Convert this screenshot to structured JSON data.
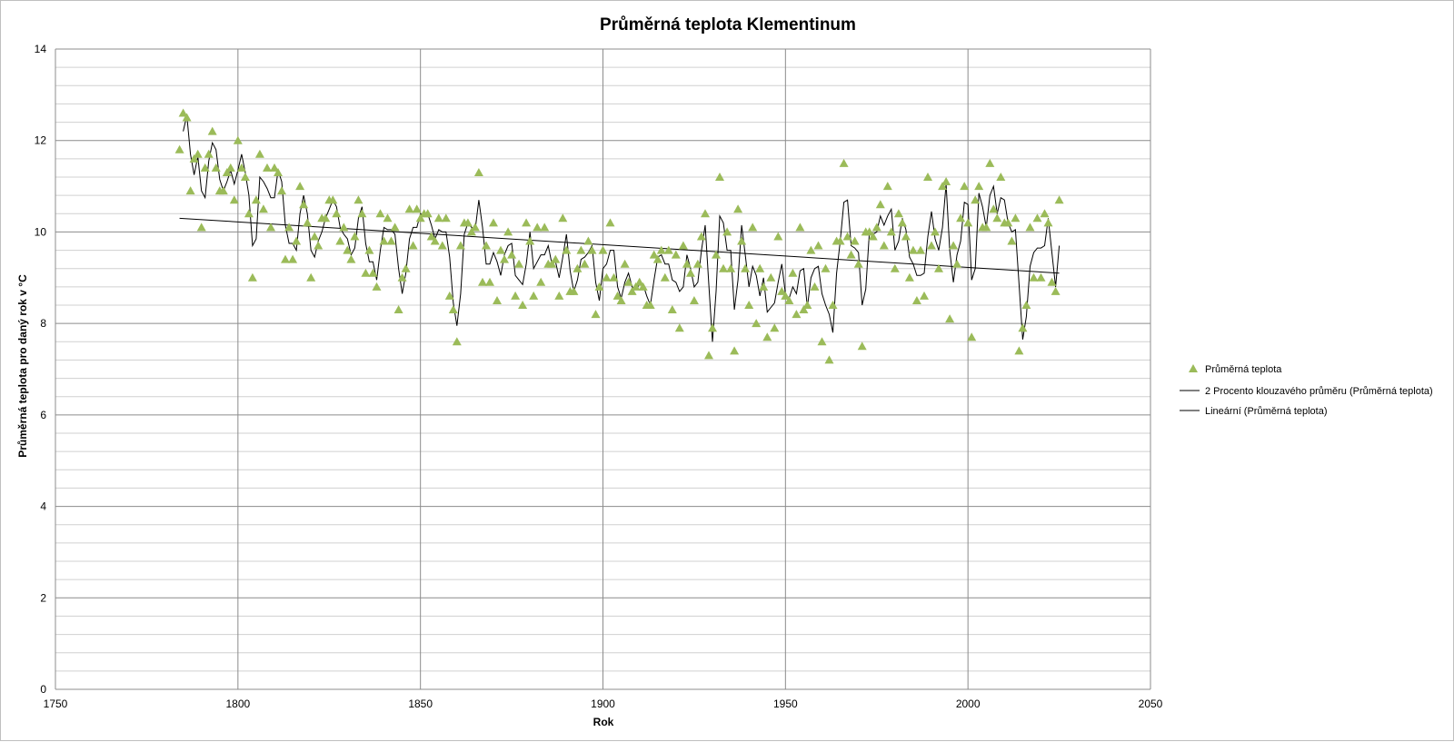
{
  "chart_data": {
    "type": "scatter",
    "title": "Průměrná teplota Klementinum",
    "xlabel": "Rok",
    "ylabel": "Průměrná teplota pro daný rok v °C",
    "xlim": [
      1750,
      2050
    ],
    "ylim": [
      0,
      14
    ],
    "x_ticks": [
      1750,
      1800,
      1850,
      1900,
      1950,
      2000,
      2050
    ],
    "y_ticks": [
      0,
      2,
      4,
      6,
      8,
      10,
      12,
      14
    ],
    "grid": "major vertical and horizontal, minor horizontal",
    "legend_position": "right",
    "colors": {
      "marker": "#9bbb59",
      "line": "#000000",
      "grid_major": "#8c8c8c",
      "grid_minor": "#d0d0d0"
    },
    "series": [
      {
        "name": "Průměrná teplota",
        "kind": "scatter",
        "marker": "triangle"
      },
      {
        "name": "2 Procento klouzavého průměru (Průměrná teplota)",
        "kind": "moving-average",
        "period": 2
      },
      {
        "name": "Lineární (Průměrná teplota)",
        "kind": "linear-trend"
      }
    ],
    "x": [
      1784,
      1785,
      1786,
      1787,
      1788,
      1789,
      1790,
      1791,
      1792,
      1793,
      1794,
      1795,
      1796,
      1797,
      1798,
      1799,
      1800,
      1801,
      1802,
      1803,
      1804,
      1805,
      1806,
      1807,
      1808,
      1809,
      1810,
      1811,
      1812,
      1813,
      1814,
      1815,
      1816,
      1817,
      1818,
      1819,
      1820,
      1821,
      1822,
      1823,
      1824,
      1825,
      1826,
      1827,
      1828,
      1829,
      1830,
      1831,
      1832,
      1833,
      1834,
      1835,
      1836,
      1837,
      1838,
      1839,
      1840,
      1841,
      1842,
      1843,
      1844,
      1845,
      1846,
      1847,
      1848,
      1849,
      1850,
      1851,
      1852,
      1853,
      1854,
      1855,
      1856,
      1857,
      1858,
      1859,
      1860,
      1861,
      1862,
      1863,
      1864,
      1865,
      1866,
      1867,
      1868,
      1869,
      1870,
      1871,
      1872,
      1873,
      1874,
      1875,
      1876,
      1877,
      1878,
      1879,
      1880,
      1881,
      1882,
      1883,
      1884,
      1885,
      1886,
      1887,
      1888,
      1889,
      1890,
      1891,
      1892,
      1893,
      1894,
      1895,
      1896,
      1897,
      1898,
      1899,
      1900,
      1901,
      1902,
      1903,
      1904,
      1905,
      1906,
      1907,
      1908,
      1909,
      1910,
      1911,
      1912,
      1913,
      1914,
      1915,
      1916,
      1917,
      1918,
      1919,
      1920,
      1921,
      1922,
      1923,
      1924,
      1925,
      1926,
      1927,
      1928,
      1929,
      1930,
      1931,
      1932,
      1933,
      1934,
      1935,
      1936,
      1937,
      1938,
      1939,
      1940,
      1941,
      1942,
      1943,
      1944,
      1945,
      1946,
      1947,
      1948,
      1949,
      1950,
      1951,
      1952,
      1953,
      1954,
      1955,
      1956,
      1957,
      1958,
      1959,
      1960,
      1961,
      1962,
      1963,
      1964,
      1965,
      1966,
      1967,
      1968,
      1969,
      1970,
      1971,
      1972,
      1973,
      1974,
      1975,
      1976,
      1977,
      1978,
      1979,
      1980,
      1981,
      1982,
      1983,
      1984,
      1985,
      1986,
      1987,
      1988,
      1989,
      1990,
      1991,
      1992,
      1993,
      1994,
      1995,
      1996,
      1997,
      1998,
      1999,
      2000,
      2001,
      2002,
      2003,
      2004,
      2005,
      2006,
      2007,
      2008,
      2009,
      2010,
      2011,
      2012,
      2013,
      2014,
      2015,
      2016,
      2017,
      2018,
      2019,
      2020,
      2021,
      2022,
      2023,
      2024,
      2025
    ],
    "y": [
      11.8,
      12.6,
      12.5,
      10.9,
      11.6,
      11.7,
      10.1,
      11.4,
      11.7,
      12.2,
      11.4,
      10.9,
      10.9,
      11.3,
      11.4,
      10.7,
      12.0,
      11.4,
      11.2,
      10.4,
      9.0,
      10.7,
      11.7,
      10.5,
      11.4,
      10.1,
      11.4,
      11.3,
      10.9,
      9.4,
      10.1,
      9.4,
      9.8,
      11.0,
      10.6,
      10.2,
      9.0,
      9.9,
      9.7,
      10.3,
      10.3,
      10.7,
      10.7,
      10.4,
      9.8,
      10.1,
      9.6,
      9.4,
      9.9,
      10.7,
      10.4,
      9.1,
      9.6,
      9.1,
      8.8,
      10.4,
      9.8,
      10.3,
      9.8,
      10.1,
      8.3,
      9.0,
      9.2,
      10.5,
      9.7,
      10.5,
      10.3,
      10.4,
      10.4,
      9.9,
      9.8,
      10.3,
      9.7,
      10.3,
      8.6,
      8.3,
      7.6,
      9.7,
      10.2,
      10.2,
      10.0,
      10.1,
      11.3,
      8.9,
      9.7,
      8.9,
      10.2,
      8.5,
      9.6,
      9.4,
      10.0,
      9.5,
      8.6,
      9.3,
      8.4,
      10.2,
      9.8,
      8.6,
      10.1,
      8.9,
      10.1,
      9.3,
      9.3,
      9.4,
      8.6,
      10.3,
      9.6,
      8.7,
      8.7,
      9.2,
      9.6,
      9.3,
      9.8,
      9.6,
      8.2,
      8.8,
      9.6,
      9.0,
      10.2,
      9.0,
      8.6,
      8.5,
      9.3,
      8.9,
      8.7,
      8.8,
      8.9,
      8.8,
      8.4,
      8.4,
      9.5,
      9.4,
      9.6,
      9.0,
      9.6,
      8.3,
      9.5,
      7.9,
      9.7,
      9.3,
      9.1,
      8.5,
      9.3,
      9.9,
      10.4,
      7.3,
      7.9,
      9.5,
      11.2,
      9.2,
      10.0,
      9.2,
      7.4,
      10.5,
      9.8,
      9.2,
      8.4,
      10.1,
      8.0,
      9.2,
      8.8,
      7.7,
      9.0,
      7.9,
      9.9,
      8.7,
      8.6,
      8.5,
      9.1,
      8.2,
      10.1,
      8.3,
      8.4,
      9.6,
      8.8,
      9.7,
      7.6,
      9.2,
      7.2,
      8.4,
      9.8,
      9.8,
      11.5,
      9.9,
      9.5,
      9.8,
      9.3,
      7.5,
      10.0,
      10.0,
      9.9,
      10.1,
      10.6,
      9.7,
      11.0,
      10.0,
      9.2,
      10.4,
      10.2,
      9.9,
      9.0,
      9.6,
      8.5,
      9.6,
      8.6,
      11.2,
      9.7,
      10.0,
      9.2,
      11.0,
      11.1,
      8.1,
      9.7,
      9.3,
      10.3,
      11.0,
      10.2,
      7.7,
      10.7,
      11.0,
      10.1,
      10.1,
      11.5,
      10.5,
      10.3,
      11.2,
      10.2,
      10.2,
      9.8,
      10.3,
      7.4,
      7.9,
      8.4,
      10.1,
      9.0,
      10.3,
      9.0,
      10.4,
      10.2,
      8.9,
      8.7,
      10.7
    ],
    "trend": {
      "x": [
        1784,
        2025
      ],
      "y": [
        10.3,
        9.1
      ]
    }
  },
  "legend": [
    {
      "label": "Průměrná teplota"
    },
    {
      "label": "2 Procento klouzavého průměru (Průměrná teplota)"
    },
    {
      "label": "Lineární (Průměrná teplota)"
    }
  ]
}
